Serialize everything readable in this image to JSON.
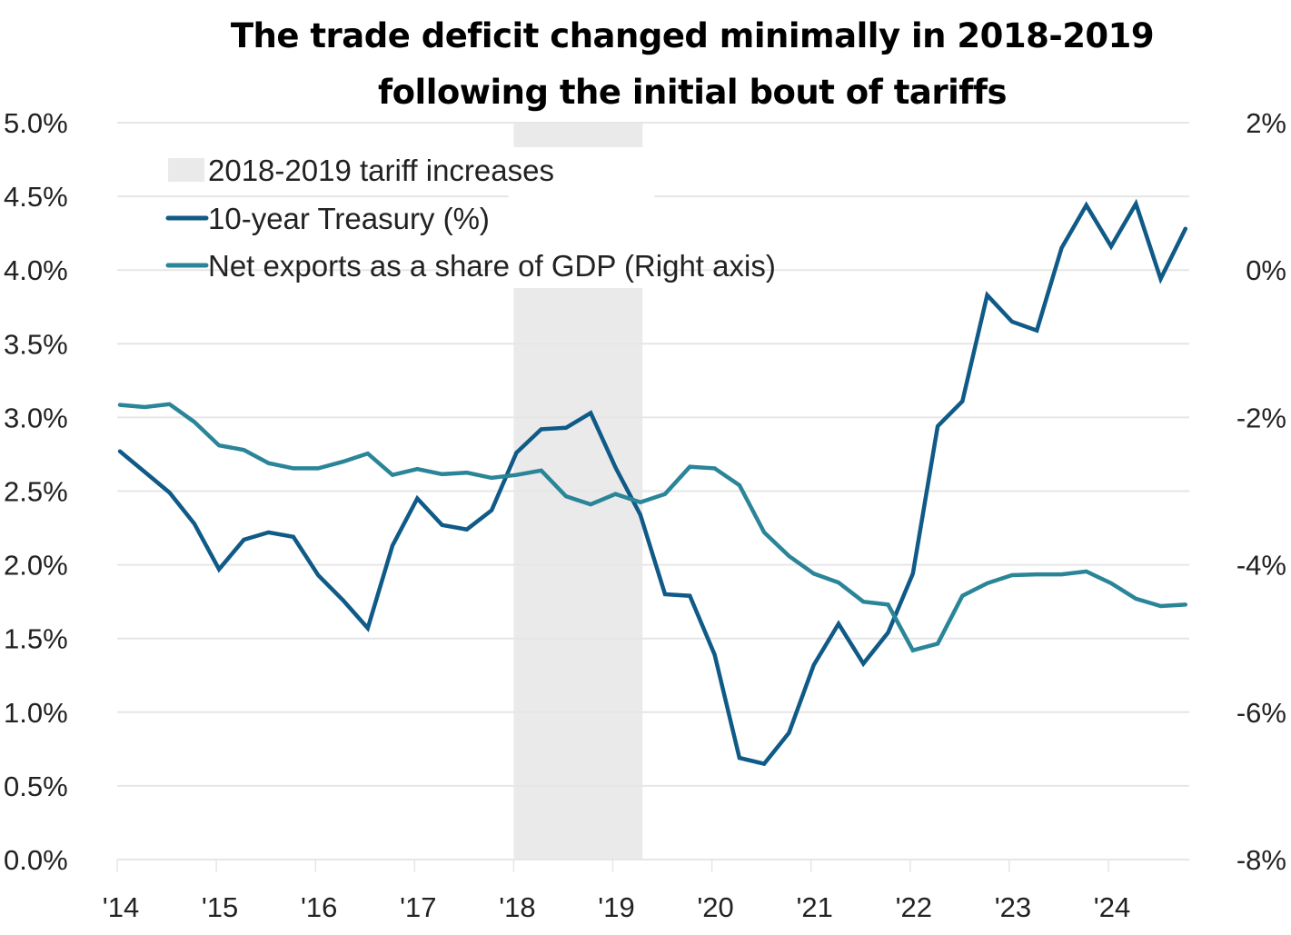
{
  "chart_data": {
    "type": "line",
    "title": [
      "The trade deficit changed minimally in 2018-2019",
      "following the initial bout of tariffs"
    ],
    "xlabel": "",
    "ylabel_left": "",
    "ylabel_right": "",
    "x_start": "2014Q1",
    "frequency": "quarterly",
    "x_range": [
      2014.0,
      2024.75
    ],
    "x_ticks": [
      2014,
      2015,
      2016,
      2017,
      2018,
      2019,
      2020,
      2021,
      2022,
      2023,
      2024
    ],
    "x_tick_labels": [
      "'14",
      "'15",
      "'16",
      "'17",
      "'18",
      "'19",
      "'20",
      "'21",
      "'22",
      "'23",
      "'24"
    ],
    "y_left": {
      "range": [
        0,
        5
      ],
      "ticks": [
        0,
        0.5,
        1,
        1.5,
        2,
        2.5,
        3,
        3.5,
        4,
        4.5,
        5
      ],
      "tick_labels": [
        "0.0%",
        "0.5%",
        "1.0%",
        "1.5%",
        "2.0%",
        "2.5%",
        "3.0%",
        "3.5%",
        "4.0%",
        "4.5%",
        "5.0%"
      ]
    },
    "y_right": {
      "range": [
        -8,
        2
      ],
      "ticks": [
        -8,
        -6,
        -4,
        -2,
        0,
        2
      ],
      "tick_labels": [
        "-8%",
        "-6%",
        "-4%",
        "-2%",
        "0%",
        "2%"
      ]
    },
    "grid": true,
    "legend_position": "top-left",
    "shaded_regions": [
      {
        "name": "2018-2019 tariff increases",
        "start": 2018.0,
        "end": 2019.3,
        "color": "#ebeaea"
      }
    ],
    "series": [
      {
        "name": "10-year Treasury (%)",
        "axis": "left",
        "color": "#0f5a86",
        "values": [
          2.77,
          2.63,
          2.49,
          2.28,
          1.97,
          2.17,
          2.22,
          2.19,
          1.93,
          1.76,
          1.57,
          2.13,
          2.45,
          2.27,
          2.24,
          2.37,
          2.76,
          2.92,
          2.93,
          3.03,
          2.66,
          2.34,
          1.8,
          1.79,
          1.39,
          0.69,
          0.65,
          0.86,
          1.32,
          1.6,
          1.33,
          1.54,
          1.94,
          2.94,
          3.11,
          3.83,
          3.65,
          3.59,
          4.15,
          4.44,
          4.16,
          4.45,
          3.94,
          4.28
        ]
      },
      {
        "name": "Net exports as a share of GDP (Right axis)",
        "axis": "right",
        "color": "#2a8598",
        "values": [
          -1.83,
          -1.86,
          -1.82,
          -2.06,
          -2.38,
          -2.44,
          -2.62,
          -2.69,
          -2.69,
          -2.6,
          -2.49,
          -2.78,
          -2.7,
          -2.77,
          -2.75,
          -2.82,
          -2.78,
          -2.72,
          -3.07,
          -3.18,
          -3.04,
          -3.15,
          -3.04,
          -2.67,
          -2.69,
          -2.92,
          -3.56,
          -3.88,
          -4.12,
          -4.24,
          -4.5,
          -4.54,
          -5.16,
          -5.07,
          -4.42,
          -4.25,
          -4.14,
          -4.13,
          -4.13,
          -4.09,
          -4.25,
          -4.46,
          -4.56,
          -4.54
        ]
      }
    ],
    "legend": [
      {
        "label": "2018-2019 tariff increases",
        "kind": "box",
        "color": "#ebeaea"
      },
      {
        "label": "10-year Treasury (%)",
        "kind": "line",
        "color": "#0f5a86"
      },
      {
        "label": "Net exports as a share of GDP (Right axis)",
        "kind": "line",
        "color": "#2a8598"
      }
    ]
  }
}
